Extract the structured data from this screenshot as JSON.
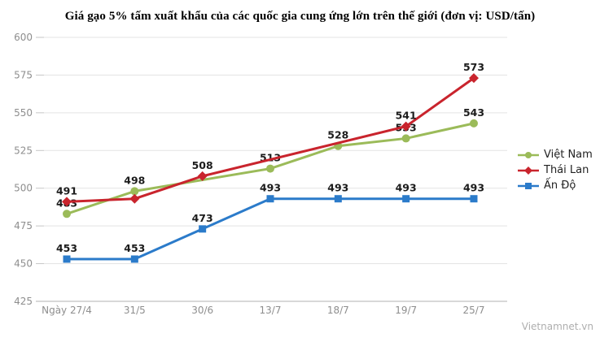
{
  "title": "Giá gạo 5% tấm xuất khẩu của các quốc gia cung ứng lớn trên thế giới (đơn vị: USD/tấn)",
  "watermark": "Vietnamnet.vn",
  "chart_data": {
    "type": "line",
    "title": "Giá gạo 5% tấm xuất khẩu của các quốc gia cung ứng lớn trên thế giới (đơn vị: USD/tấn)",
    "categories": [
      "Ngày 27/4",
      "31/5",
      "30/6",
      "13/7",
      "18/7",
      "19/7",
      "25/7"
    ],
    "series": [
      {
        "id": "viet-nam",
        "name": "Việt Nam",
        "color": "#9bbb59",
        "marker": "circle",
        "values": [
          483,
          498,
          null,
          513,
          528,
          533,
          543
        ],
        "unlabeled_indices": []
      },
      {
        "id": "thai-lan",
        "name": "Thái Lan",
        "color": "#c9242d",
        "marker": "diamond",
        "values": [
          491,
          493,
          508,
          null,
          null,
          541,
          573
        ],
        "unlabeled_indices": [
          1
        ]
      },
      {
        "id": "an-do",
        "name": "Ấn Độ",
        "color": "#2b7bca",
        "marker": "square",
        "values": [
          453,
          453,
          473,
          493,
          493,
          493,
          493
        ],
        "unlabeled_indices": []
      }
    ],
    "xlabel": "",
    "ylabel": "",
    "ylim": [
      425,
      600
    ],
    "ytick_step": 25,
    "y_ticks": [
      425,
      450,
      475,
      500,
      525,
      550,
      575,
      600
    ],
    "grid": "horizontal",
    "legend_position": "right",
    "colors": {
      "gridline": "#e3e3e3",
      "axis_line": "#b2b2b2",
      "tick": "#c6c6c6",
      "axis_text": "#8e8e8e",
      "value_text": "#1c1c1c"
    }
  }
}
